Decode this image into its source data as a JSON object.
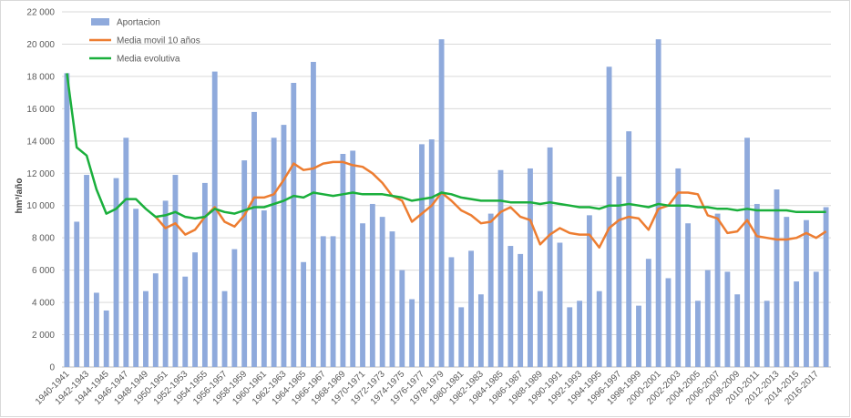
{
  "chart_data": {
    "type": "bar_line",
    "ylabel": "hm³/año",
    "categories": [
      "1940-1941",
      null,
      "1942-1943",
      null,
      "1944-1945",
      null,
      "1946-1947",
      null,
      "1948-1949",
      null,
      "1950-1951",
      null,
      "1952-1953",
      null,
      "1954-1955",
      null,
      "1956-1957",
      null,
      "1958-1959",
      null,
      "1960-1961",
      null,
      "1962-1963",
      null,
      "1964-1965",
      null,
      "1966-1967",
      null,
      "1968-1969",
      null,
      "1970-1971",
      null,
      "1972-1973",
      null,
      "1974-1975",
      null,
      "1976-1977",
      null,
      "1978-1979",
      null,
      "1980-1981",
      null,
      "1982-1983",
      null,
      "1984-1985",
      null,
      "1986-1987",
      null,
      "1988-1989",
      null,
      "1990-1991",
      null,
      "1992-1993",
      null,
      "1994-1995",
      null,
      "1996-1997",
      null,
      "1998-1999",
      null,
      "2000-2001",
      null,
      "2002-2003",
      null,
      "2004-2005",
      null,
      "2006-2007",
      null,
      "2008-2009",
      null,
      "2010-2011",
      null,
      "2012-2013",
      null,
      "2014-2015",
      null,
      "2016-2017",
      null
    ],
    "series": [
      {
        "name": "Aportacion",
        "kind": "bar",
        "color": "#8faadc",
        "values": [
          18200,
          9000,
          11900,
          4600,
          3500,
          11700,
          14200,
          9800,
          4700,
          5800,
          10300,
          11900,
          5600,
          7100,
          11400,
          18300,
          4700,
          7300,
          12800,
          15800,
          9700,
          14200,
          15000,
          17600,
          6500,
          18900,
          8100,
          8100,
          13200,
          13400,
          8900,
          10100,
          9300,
          8400,
          6000,
          4200,
          13800,
          14100,
          20300,
          6800,
          3700,
          7200,
          4500,
          9500,
          12200,
          7500,
          7000,
          12300,
          4700,
          13600,
          7700,
          3700,
          4100,
          9400,
          4700,
          18600,
          11800,
          14600,
          3800,
          6700,
          20300,
          5500,
          12300,
          8900,
          4100,
          6000,
          9500,
          5900,
          4500,
          14200,
          10100,
          4100,
          11000,
          9300,
          5300,
          9100,
          5900,
          9900
        ]
      },
      {
        "name": "Media movil 10 años",
        "kind": "line",
        "color": "#ed7d31",
        "values": [
          null,
          null,
          null,
          null,
          null,
          null,
          null,
          null,
          null,
          9300,
          8600,
          8900,
          8200,
          8500,
          9300,
          9900,
          9000,
          8700,
          9400,
          10500,
          10500,
          10700,
          11600,
          12600,
          12200,
          12300,
          12600,
          12700,
          12700,
          12500,
          12400,
          12000,
          11400,
          10600,
          10300,
          9000,
          9500,
          10000,
          10800,
          10300,
          9700,
          9400,
          8900,
          9000,
          9600,
          9900,
          9300,
          9100,
          7600,
          8200,
          8600,
          8300,
          8200,
          8200,
          7400,
          8600,
          9100,
          9300,
          9200,
          8500,
          9800,
          10000,
          10800,
          10800,
          10700,
          9400,
          9200,
          8300,
          8400,
          9100,
          8100,
          8000,
          7900,
          7900,
          8000,
          8300,
          8000,
          8400
        ]
      },
      {
        "name": "Media evolutiva",
        "kind": "line",
        "color": "#1aaf3c",
        "values": [
          18200,
          13600,
          13100,
          11000,
          9500,
          9800,
          10400,
          10400,
          9800,
          9300,
          9400,
          9600,
          9300,
          9200,
          9300,
          9800,
          9600,
          9500,
          9700,
          9900,
          9900,
          10100,
          10300,
          10600,
          10500,
          10800,
          10700,
          10600,
          10700,
          10800,
          10700,
          10700,
          10700,
          10600,
          10500,
          10300,
          10400,
          10500,
          10800,
          10700,
          10500,
          10400,
          10300,
          10300,
          10300,
          10200,
          10200,
          10200,
          10100,
          10200,
          10100,
          10000,
          9900,
          9900,
          9800,
          10000,
          10000,
          10100,
          10000,
          9900,
          10100,
          10000,
          10000,
          10000,
          9900,
          9900,
          9800,
          9800,
          9700,
          9800,
          9700,
          9700,
          9700,
          9700,
          9600,
          9600,
          9600,
          9600
        ]
      }
    ],
    "ylim": [
      0,
      22000
    ],
    "yticks": [
      0,
      {
        "value": 2000,
        "label": "2 000"
      },
      {
        "value": 4000,
        "label": "4 000"
      },
      {
        "value": 6000,
        "label": "6 000"
      },
      {
        "value": 8000,
        "label": "8 000"
      },
      {
        "value": 10000,
        "label": "10 000"
      },
      {
        "value": 12000,
        "label": "12 000"
      },
      {
        "value": 14000,
        "label": "14 000"
      },
      {
        "value": 16000,
        "label": "16 000"
      },
      {
        "value": 18000,
        "label": "18 000"
      },
      {
        "value": 20000,
        "label": "20 000"
      },
      {
        "value": 22000,
        "label": "22 000"
      }
    ],
    "grid": true,
    "legend": "top-left"
  }
}
